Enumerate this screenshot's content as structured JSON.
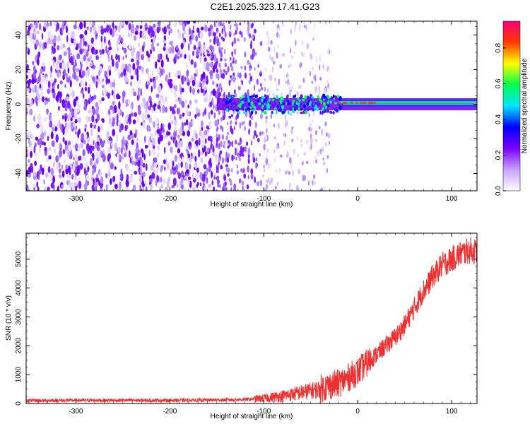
{
  "title": "C2E1.2025.323.17.41.G23",
  "chart_data": [
    {
      "type": "heatmap",
      "xlabel": "Height of straight line (km)",
      "ylabel": "Frequency (Hz)",
      "xlim": [
        -353,
        127
      ],
      "ylim": [
        -50,
        48
      ],
      "x_ticks": [
        "-300",
        "-200",
        "-100",
        "0",
        "100"
      ],
      "x_tick_values": [
        -300,
        -200,
        -100,
        0,
        100
      ],
      "y_ticks": [
        "40",
        "20",
        "0",
        "-20",
        "-40"
      ],
      "y_tick_values": [
        40,
        20,
        0,
        -20,
        -40
      ],
      "colorbar": {
        "label": "Normalized spectral amplitude",
        "range": [
          0,
          0.95
        ],
        "ticks": [
          "0.8",
          "0.6",
          "0.4",
          "0.2",
          "0.0"
        ],
        "tick_values": [
          0.8,
          0.6,
          0.4,
          0.2,
          0.0
        ],
        "colors": [
          "#ffffff",
          "#c8a0ff",
          "#7b00ff",
          "#0000ff",
          "#00e5ff",
          "#00ff4c",
          "#ffff00",
          "#ff3b00",
          "#ff007a"
        ]
      },
      "regions": [
        {
          "description": "broadband noise",
          "x": [
            -353,
            -150
          ],
          "freq": [
            -50,
            48
          ],
          "amplitude": 0.15
        },
        {
          "description": "fading noise",
          "x": [
            -150,
            -30
          ],
          "freq": [
            -50,
            48
          ],
          "amplitude": 0.07
        },
        {
          "description": "signal line",
          "x": [
            -150,
            127
          ],
          "freq": [
            -1,
            2
          ],
          "amplitude": 0.55
        }
      ]
    },
    {
      "type": "line",
      "xlabel": "Height of straight line (km)",
      "ylabel": "SNR (10 * v/v)",
      "xlim": [
        -353,
        127
      ],
      "ylim": [
        0,
        5900
      ],
      "x_ticks": [
        "-300",
        "-200",
        "-100",
        "0",
        "100"
      ],
      "x_tick_values": [
        -300,
        -200,
        -100,
        0,
        100
      ],
      "y_ticks": [
        "5000",
        "4000",
        "3000",
        "2000",
        "1000",
        "0"
      ],
      "y_tick_values": [
        5000,
        4000,
        3000,
        2000,
        1000,
        0
      ],
      "series": [
        {
          "color": "#ee3030",
          "x": [
            -353,
            -300,
            -250,
            -200,
            -150,
            -120,
            -100,
            -80,
            -60,
            -40,
            -30,
            -20,
            -10,
            0,
            10,
            20,
            30,
            40,
            50,
            60,
            70,
            80,
            90,
            100,
            110,
            120,
            127
          ],
          "values": [
            100,
            110,
            110,
            110,
            120,
            140,
            180,
            260,
            380,
            500,
            620,
            700,
            900,
            1100,
            1400,
            1700,
            2000,
            2300,
            2700,
            3300,
            3900,
            4400,
            4800,
            5000,
            5200,
            5300,
            5250
          ]
        }
      ]
    }
  ]
}
